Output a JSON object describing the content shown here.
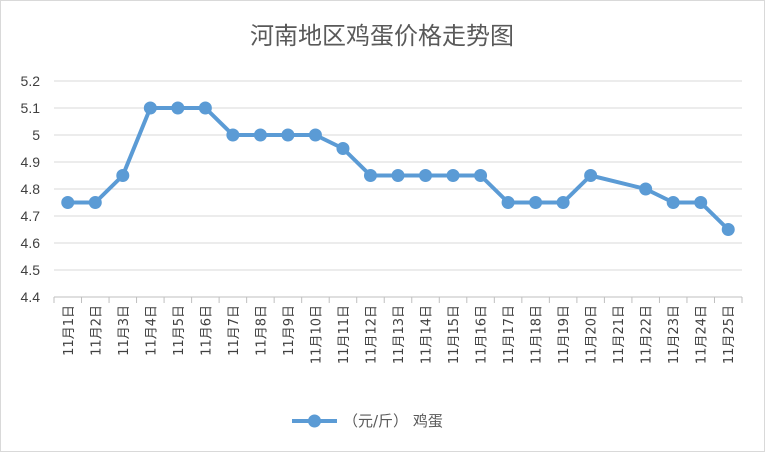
{
  "chart_data": {
    "type": "line",
    "title": "河南地区鸡蛋价格走势图",
    "xlabel": "",
    "ylabel": "",
    "categories": [
      "11月1日",
      "11月2日",
      "11月3日",
      "11月4日",
      "11月5日",
      "11月6日",
      "11月7日",
      "11月8日",
      "11月9日",
      "11月10日",
      "11月11日",
      "11月12日",
      "11月13日",
      "11月14日",
      "11月15日",
      "11月16日",
      "11月17日",
      "11月18日",
      "11月19日",
      "11月20日",
      "11月21日",
      "11月22日",
      "11月23日",
      "11月24日",
      "11月25日"
    ],
    "series": [
      {
        "name": "（元/斤） 鸡蛋",
        "color": "#5b9bd5",
        "values": [
          4.75,
          4.75,
          4.85,
          5.1,
          5.1,
          5.1,
          5.0,
          5.0,
          5.0,
          5.0,
          4.95,
          4.85,
          4.85,
          4.85,
          4.85,
          4.85,
          4.75,
          4.75,
          4.75,
          4.85,
          null,
          4.8,
          4.75,
          4.75,
          4.65
        ]
      }
    ],
    "ylim": [
      4.4,
      5.2
    ],
    "yticks": [
      "4.4",
      "4.5",
      "4.6",
      "4.7",
      "4.8",
      "4.9",
      "5",
      "5.1",
      "5.2"
    ],
    "grid": true,
    "legend": "bottom",
    "gridline_color": "#d9d9d9"
  }
}
